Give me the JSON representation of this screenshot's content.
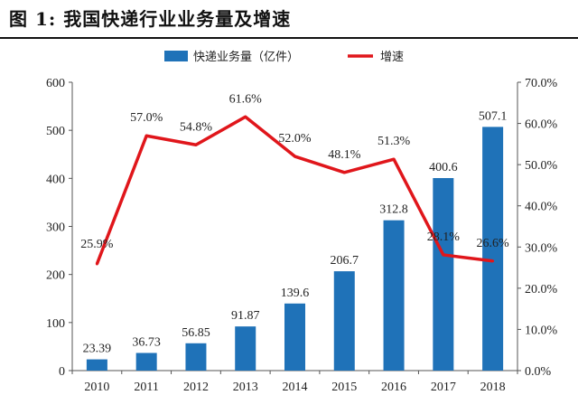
{
  "figure": {
    "title": "图 1: 我国快递行业业务量及增速"
  },
  "chart_data": {
    "type": "bar",
    "title": "图 1: 我国快递行业业务量及增速",
    "categories": [
      "2010",
      "2011",
      "2012",
      "2013",
      "2014",
      "2015",
      "2016",
      "2017",
      "2018"
    ],
    "series": [
      {
        "name": "快递业务量（亿件）",
        "type": "bar",
        "axis": "left",
        "color": "#1f72b8",
        "values": [
          23.39,
          36.73,
          56.85,
          91.87,
          139.6,
          206.7,
          312.8,
          400.6,
          507.1
        ],
        "labels": [
          "23.39",
          "36.73",
          "56.85",
          "91.87",
          "139.6",
          "206.7",
          "312.8",
          "400.6",
          "507.1"
        ]
      },
      {
        "name": "增速",
        "type": "line",
        "axis": "right",
        "color": "#e0161b",
        "values": [
          25.9,
          57.0,
          54.8,
          61.6,
          52.0,
          48.1,
          51.3,
          28.1,
          26.6
        ],
        "labels": [
          "25.9%",
          "57.0%",
          "54.8%",
          "61.6%",
          "52.0%",
          "48.1%",
          "51.3%",
          "28.1%",
          "26.6%"
        ]
      }
    ],
    "left_axis": {
      "ylim": [
        0,
        600
      ],
      "ticks": [
        "0",
        "100",
        "200",
        "300",
        "400",
        "500",
        "600"
      ]
    },
    "right_axis": {
      "ylim": [
        0,
        70
      ],
      "ticks": [
        "0.0%",
        "10.0%",
        "20.0%",
        "30.0%",
        "40.0%",
        "50.0%",
        "60.0%",
        "70.0%"
      ]
    },
    "legend_position": "top-center",
    "grid": false
  }
}
